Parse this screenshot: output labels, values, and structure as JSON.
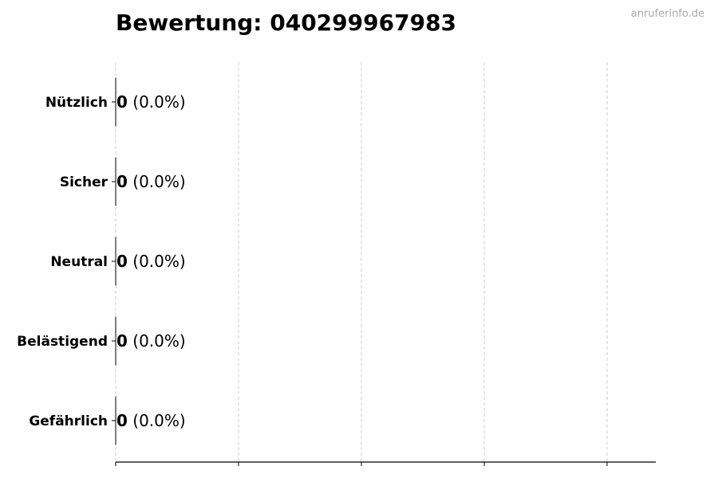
{
  "chart_data": {
    "type": "bar",
    "orientation": "horizontal",
    "title": "Bewertung: 040299967983",
    "watermark": "anruferinfo.de",
    "categories": [
      "Nützlich",
      "Sicher",
      "Neutral",
      "Belästigend",
      "Gefährlich"
    ],
    "values": [
      0,
      0,
      0,
      0,
      0
    ],
    "value_labels": [
      "0",
      "0",
      "0",
      "0",
      "0"
    ],
    "percent_labels": [
      "(0.0%)",
      "(0.0%)",
      "(0.0%)",
      "(0.0%)",
      "(0.0%)"
    ],
    "xlabel": "",
    "ylabel": "",
    "x_tick_labels_shown": false,
    "x_tick_count": 5,
    "grid": "vertical dashed",
    "colors": {
      "bar_edge": "#000000",
      "grid": "#cccccc",
      "watermark": "#aaaaaa"
    }
  }
}
